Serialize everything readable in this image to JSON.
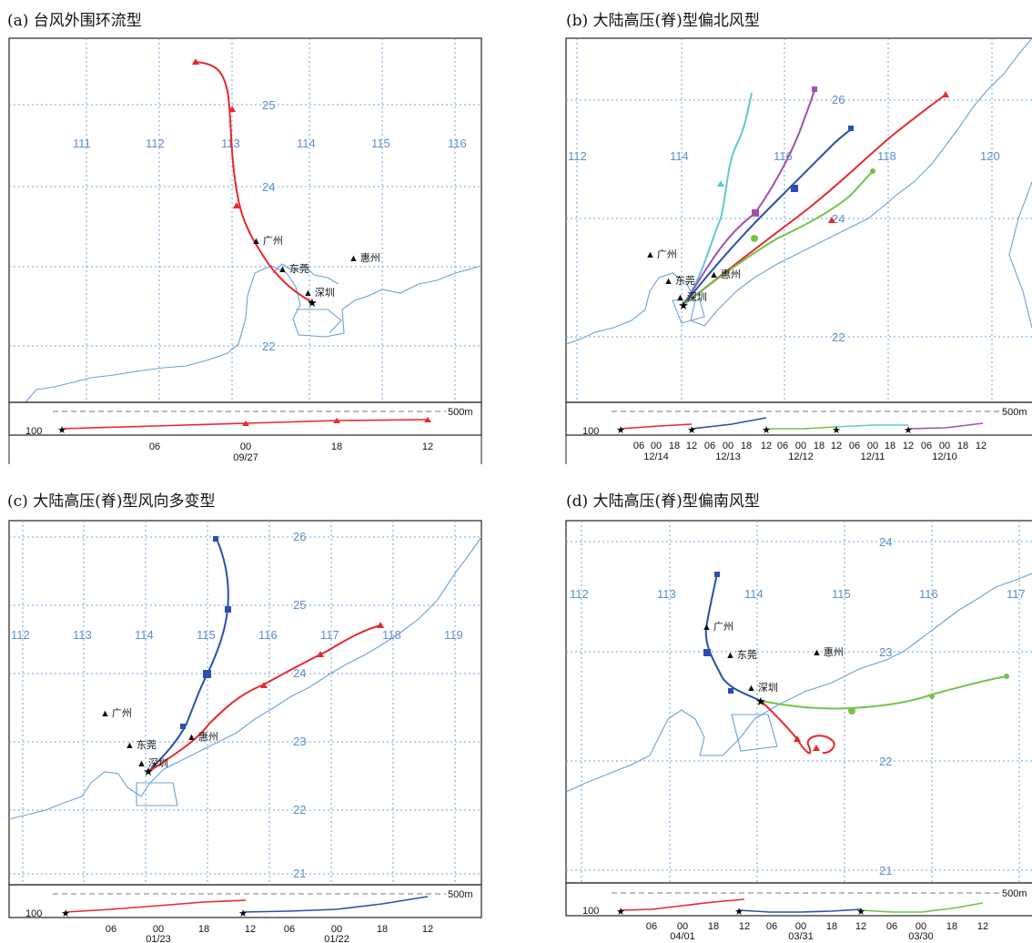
{
  "panels": [
    {
      "id": "a",
      "title": "(a) 台风外围环流型",
      "lon_labels": [
        "111",
        "112",
        "113",
        "114",
        "115",
        "116"
      ],
      "lat_labels": [
        "25",
        "24",
        "22"
      ],
      "cities": [
        "广州",
        "东莞",
        "深圳",
        "惠州"
      ],
      "height_ticks": {
        "low": "100",
        "high": "500m"
      },
      "time_ticks": [
        "06",
        "00",
        "18",
        "12"
      ],
      "dates": [
        "09/27"
      ],
      "tracks": [
        {
          "color": "#e8282b",
          "marker": "triangle"
        }
      ]
    },
    {
      "id": "b",
      "title": "(b) 大陆高压(脊)型偏北风型",
      "lon_labels": [
        "112",
        "114",
        "116",
        "118",
        "120"
      ],
      "lat_labels": [
        "26",
        "24",
        "22"
      ],
      "cities": [
        "广州",
        "东莞",
        "惠州",
        "深圳"
      ],
      "height_ticks": {
        "low": "100",
        "high": "500m"
      },
      "time_ticks": [
        "06",
        "00",
        "18",
        "12",
        "06",
        "00",
        "18",
        "12",
        "06",
        "00",
        "18",
        "12",
        "06",
        "00",
        "18",
        "12",
        "06",
        "00",
        "18",
        "12"
      ],
      "dates": [
        "12/14",
        "12/13",
        "12/12",
        "12/11",
        "12/10"
      ],
      "tracks": [
        {
          "color": "#2a4fae",
          "marker": "square"
        },
        {
          "color": "#a350b3",
          "marker": "square"
        },
        {
          "color": "#5ec8d2",
          "marker": "triangle"
        },
        {
          "color": "#e8282b",
          "marker": "triangle"
        },
        {
          "color": "#72c34a",
          "marker": "circle"
        }
      ]
    },
    {
      "id": "c",
      "title": "(c) 大陆高压(脊)型风向多变型",
      "lon_labels": [
        "112",
        "113",
        "114",
        "115",
        "116",
        "117",
        "118",
        "119"
      ],
      "lat_labels": [
        "26",
        "25",
        "24",
        "23",
        "22",
        "21"
      ],
      "cities": [
        "广州",
        "东莞",
        "惠州",
        "深圳"
      ],
      "height_ticks": {
        "low": "100",
        "high": "500m"
      },
      "time_ticks": [
        "06",
        "00",
        "18",
        "12",
        "06",
        "00",
        "18",
        "12"
      ],
      "dates": [
        "01/23",
        "01/22"
      ],
      "tracks": [
        {
          "color": "#2a4fae",
          "marker": "square"
        },
        {
          "color": "#e8282b",
          "marker": "triangle"
        }
      ]
    },
    {
      "id": "d",
      "title": "(d) 大陆高压(脊)型偏南风型",
      "lon_labels": [
        "112",
        "113",
        "114",
        "115",
        "116",
        "117"
      ],
      "lat_labels": [
        "24",
        "23",
        "22",
        "21"
      ],
      "cities": [
        "广州",
        "东莞",
        "惠州",
        "深圳"
      ],
      "height_ticks": {
        "low": "100",
        "high": "500m"
      },
      "time_ticks": [
        "06",
        "00",
        "18",
        "12",
        "06",
        "00",
        "18",
        "12",
        "06",
        "00",
        "18",
        "12"
      ],
      "dates": [
        "04/01",
        "03/31",
        "03/30"
      ],
      "tracks": [
        {
          "color": "#2a4fae",
          "marker": "square"
        },
        {
          "color": "#e8282b",
          "marker": "triangle"
        },
        {
          "color": "#72c34a",
          "marker": "circle"
        }
      ]
    }
  ]
}
